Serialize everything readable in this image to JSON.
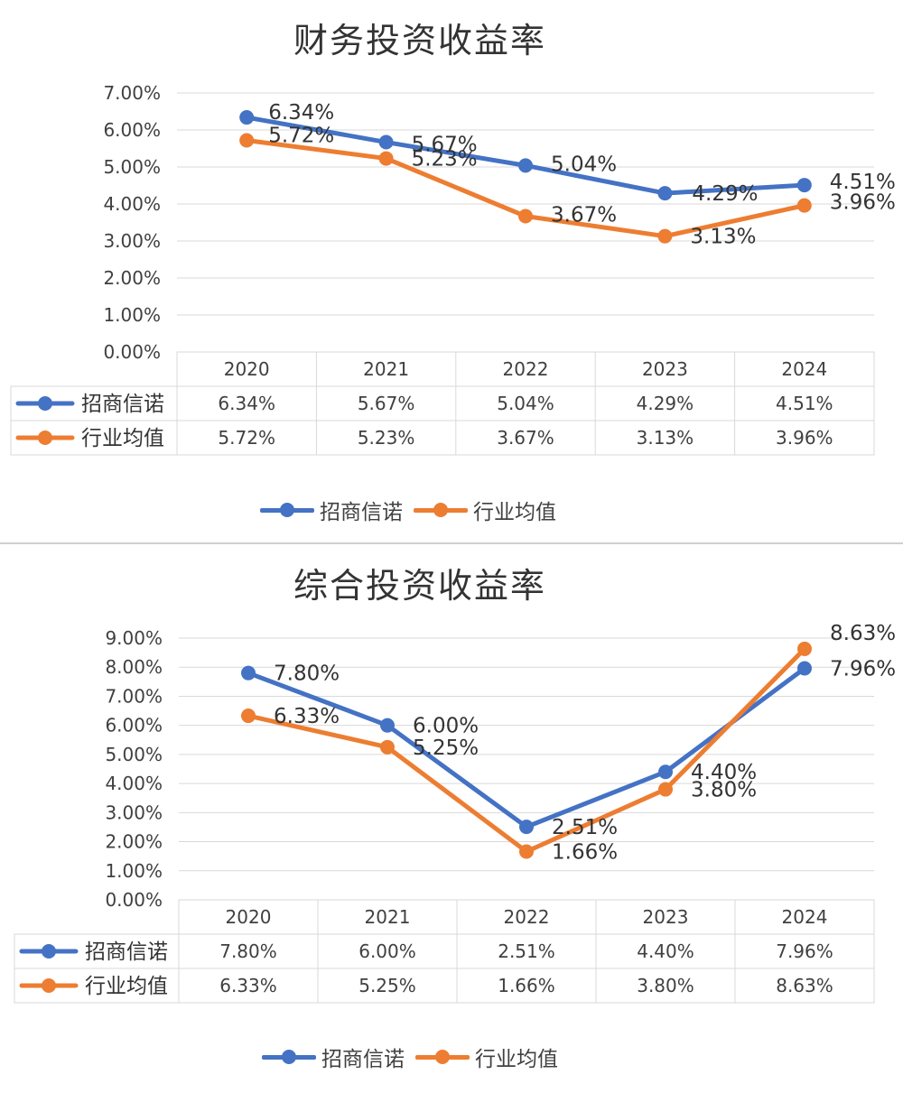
{
  "charts": [
    {
      "title": "财务投资收益率",
      "chart_data": {
        "type": "line",
        "title": "财务投资收益率",
        "categories": [
          "2020",
          "2021",
          "2022",
          "2023",
          "2024"
        ],
        "y_ticks": [
          "0.00%",
          "1.00%",
          "2.00%",
          "3.00%",
          "4.00%",
          "5.00%",
          "6.00%",
          "7.00%"
        ],
        "ylim": [
          0,
          7
        ],
        "grid": true,
        "legend_position": "bottom",
        "data_table": true,
        "series": [
          {
            "name": "招商信诺",
            "color": "#4472C4",
            "values": [
              6.34,
              5.67,
              5.04,
              4.29,
              4.51
            ],
            "labels": [
              "6.34%",
              "5.67%",
              "5.04%",
              "4.29%",
              "4.51%"
            ]
          },
          {
            "name": "行业均值",
            "color": "#ED7D31",
            "values": [
              5.72,
              5.23,
              3.67,
              3.13,
              3.96
            ],
            "labels": [
              "5.72%",
              "5.23%",
              "3.67%",
              "3.13%",
              "3.96%"
            ]
          }
        ]
      }
    },
    {
      "title": "综合投资收益率",
      "chart_data": {
        "type": "line",
        "title": "综合投资收益率",
        "categories": [
          "2020",
          "2021",
          "2022",
          "2023",
          "2024"
        ],
        "y_ticks": [
          "0.00%",
          "1.00%",
          "2.00%",
          "3.00%",
          "4.00%",
          "5.00%",
          "6.00%",
          "7.00%",
          "8.00%",
          "9.00%"
        ],
        "ylim": [
          0,
          9
        ],
        "grid": true,
        "legend_position": "bottom",
        "data_table": true,
        "series": [
          {
            "name": "招商信诺",
            "color": "#4472C4",
            "values": [
              7.8,
              6.0,
              2.51,
              4.4,
              7.96
            ],
            "labels": [
              "7.80%",
              "6.00%",
              "2.51%",
              "4.40%",
              "7.96%"
            ]
          },
          {
            "name": "行业均值",
            "color": "#ED7D31",
            "values": [
              6.33,
              5.25,
              1.66,
              3.8,
              8.63
            ],
            "labels": [
              "6.33%",
              "5.25%",
              "1.66%",
              "3.80%",
              "8.63%"
            ]
          }
        ]
      }
    }
  ]
}
